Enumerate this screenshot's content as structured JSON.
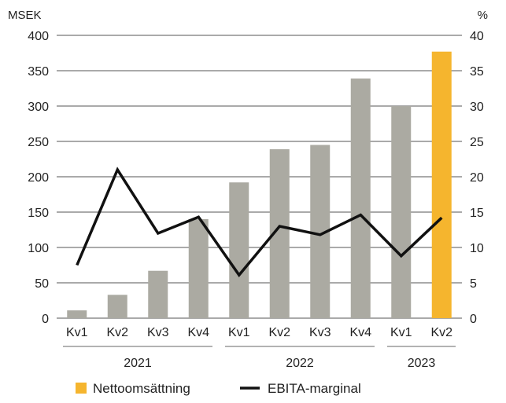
{
  "chart_data": {
    "type": "bar",
    "title": "",
    "categories": [
      "Kv1",
      "Kv2",
      "Kv3",
      "Kv4",
      "Kv1",
      "Kv2",
      "Kv3",
      "Kv4",
      "Kv1",
      "Kv2"
    ],
    "years": [
      {
        "label": "2021",
        "start": 0,
        "end": 3
      },
      {
        "label": "2022",
        "start": 4,
        "end": 7
      },
      {
        "label": "2023",
        "start": 8,
        "end": 9
      }
    ],
    "series": [
      {
        "name": "Nettoomsättning",
        "kind": "bar",
        "axis": "left",
        "values": [
          11,
          33,
          67,
          140,
          192,
          239,
          245,
          339,
          300,
          377
        ],
        "color": "#abaaa2",
        "highlight_color": "#f5b52e",
        "highlight_index": 9
      },
      {
        "name": "EBITA-marginal",
        "kind": "line",
        "axis": "right",
        "values": [
          7.5,
          21.0,
          12.0,
          14.3,
          6.1,
          13.0,
          11.8,
          14.6,
          8.8,
          14.2
        ],
        "color": "#111111"
      }
    ],
    "y_left": {
      "unit": "MSEK",
      "min": 0,
      "max": 400,
      "step": 50,
      "ticks": [
        "0",
        "50",
        "100",
        "150",
        "200",
        "250",
        "300",
        "350",
        "400"
      ]
    },
    "y_right": {
      "unit": "%",
      "min": 0,
      "max": 40,
      "step": 5,
      "ticks": [
        "0",
        "5",
        "10",
        "15",
        "20",
        "25",
        "30",
        "35",
        "40"
      ]
    },
    "grid": true,
    "legend": {
      "position": "bottom",
      "items": [
        "Nettoomsättning",
        "EBITA-marginal"
      ]
    }
  }
}
